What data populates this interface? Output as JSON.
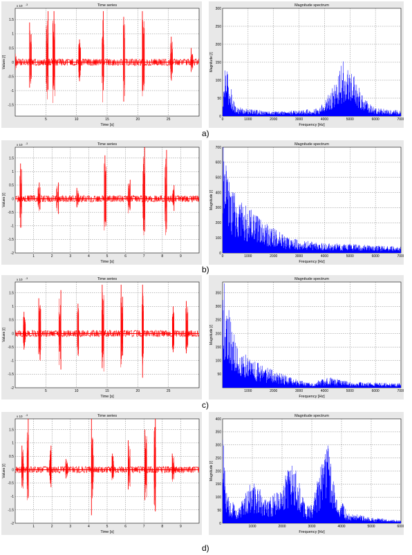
{
  "colors": {
    "time_series": "#ff0000",
    "spectrum": "#0000ff",
    "plot_bg": "#ffffff",
    "frame_bg": "#e8e8e8",
    "grid": "#555555"
  },
  "rows": [
    {
      "label": "a)",
      "time": {
        "title": "Time series",
        "xlabel": "Time [s]",
        "ylabel": "Values [/]",
        "exponent": "x 10",
        "exponent_power": "-3",
        "x_ticks": [
          "5",
          "10",
          "15",
          "20",
          "25"
        ],
        "y_ticks": [
          "1.5",
          "1",
          "0.5",
          "0",
          "-0.5",
          "-1",
          "-1.5"
        ]
      },
      "spectrum": {
        "title": "Magnitude spectrum",
        "xlabel": "Frequency [Hz]",
        "ylabel": "Magnitude [/]",
        "x_ticks": [
          "0",
          "1000",
          "2000",
          "3000",
          "4000",
          "5000",
          "6000",
          "7000"
        ],
        "y_ticks": [
          "300",
          "250",
          "200",
          "150",
          "100",
          "50",
          "0"
        ]
      }
    },
    {
      "label": "b)",
      "time": {
        "title": "Time series",
        "xlabel": "Time [s]",
        "ylabel": "Values [/]",
        "exponent": "x 10",
        "exponent_power": "-3",
        "x_ticks": [
          "1",
          "2",
          "3",
          "4",
          "5",
          "6",
          "7",
          "8",
          "9"
        ],
        "y_ticks": [
          "1.5",
          "1",
          "0.5",
          "0",
          "-0.5",
          "-1",
          "-1.5",
          "-2"
        ]
      },
      "spectrum": {
        "title": "Magnitude spectrum",
        "xlabel": "Frequency [Hz]",
        "ylabel": "Magnitude [/]",
        "x_ticks": [
          "0",
          "1000",
          "2000",
          "3000",
          "4000",
          "5000",
          "6000",
          "7000"
        ],
        "y_ticks": [
          "700",
          "600",
          "500",
          "400",
          "300",
          "200",
          "100",
          "0"
        ]
      }
    },
    {
      "label": "c)",
      "time": {
        "title": "Time series",
        "xlabel": "Time [s]",
        "ylabel": "Values [/]",
        "exponent": "x 10",
        "exponent_power": "-3",
        "x_ticks": [
          "5",
          "10",
          "15",
          "20",
          "25"
        ],
        "y_ticks": [
          "1.5",
          "1",
          "0.5",
          "0",
          "-0.5",
          "-1",
          "-1.5",
          "-2"
        ]
      },
      "spectrum": {
        "title": "Magnitude spectrum",
        "xlabel": "Frequency [Hz]",
        "ylabel": "Magnitude [/]",
        "x_ticks": [
          "1000",
          "2000",
          "3000",
          "4000",
          "5000",
          "6000",
          "7000"
        ],
        "y_ticks": [
          "350",
          "300",
          "250",
          "200",
          "150",
          "100",
          "50"
        ]
      }
    },
    {
      "label": "d)",
      "time": {
        "title": "Time series",
        "xlabel": "Time [s]",
        "ylabel": "Values [/]",
        "exponent": "x 10",
        "exponent_power": "-3",
        "x_ticks": [
          "1",
          "2",
          "3",
          "4",
          "5",
          "6",
          "7",
          "8",
          "9"
        ],
        "y_ticks": [
          "1.5",
          "1",
          "0.5",
          "0",
          "-0.5",
          "-1",
          "-1.5",
          "-2"
        ]
      },
      "spectrum": {
        "title": "Magnitude spectrum",
        "xlabel": "Frequency [Hz]",
        "ylabel": "Magnitude [/]",
        "x_ticks": [
          "1000",
          "2000",
          "3000",
          "4000",
          "5000",
          "6000"
        ],
        "y_ticks": [
          "400",
          "350",
          "300",
          "250",
          "200",
          "150",
          "100",
          "50",
          "0"
        ]
      }
    }
  ],
  "chart_data": [
    {
      "type": "line",
      "title": "Time series",
      "xlabel": "Time [s]",
      "ylabel": "Values [/]",
      "xlim": [
        0,
        30
      ],
      "ylim": [
        -1.9,
        1.9
      ],
      "y_scale_note": "x 10^-3",
      "grid": true,
      "series": [
        {
          "x": [
            0,
            2.5,
            5.2,
            6.3,
            10.5,
            14.3,
            17.8,
            20.9,
            25.5,
            28.8
          ],
          "y": [
            0.3,
            1.4,
            1.8,
            1.8,
            0.8,
            1.8,
            1.6,
            1.8,
            0.9,
            0.5
          ]
        }
      ]
    },
    {
      "type": "area",
      "title": "Magnitude spectrum",
      "xlabel": "Frequency [Hz]",
      "ylabel": "Magnitude [/]",
      "xlim": [
        0,
        7000
      ],
      "ylim": [
        0,
        300
      ],
      "grid": true,
      "series": [
        {
          "x": [
            0,
            100,
            500,
            1000,
            2000,
            3000,
            3800,
            4200,
            4500,
            4700,
            5000,
            5200,
            5500,
            6000,
            7000
          ],
          "y": [
            20,
            140,
            25,
            18,
            12,
            15,
            20,
            60,
            90,
            145,
            110,
            100,
            50,
            20,
            15
          ]
        }
      ]
    },
    {
      "type": "line",
      "title": "Time series",
      "xlabel": "Time [s]",
      "ylabel": "Values [/]",
      "xlim": [
        0,
        10
      ],
      "ylim": [
        -2,
        1.9
      ],
      "y_scale_note": "x 10^-3",
      "grid": true,
      "series": [
        {
          "x": [
            0.3,
            1.3,
            2.3,
            3.4,
            4.9,
            6.2,
            7.0,
            8.2,
            8.6
          ],
          "y": [
            1.3,
            0.6,
            0.6,
            0.4,
            1.6,
            0.7,
            1.9,
            1.8,
            0.5
          ]
        }
      ]
    },
    {
      "type": "area",
      "title": "Magnitude spectrum",
      "xlabel": "Frequency [Hz]",
      "ylabel": "Magnitude [/]",
      "xlim": [
        0,
        7000
      ],
      "ylim": [
        0,
        700
      ],
      "grid": true,
      "series": [
        {
          "x": [
            0,
            100,
            300,
            500,
            1000,
            1500,
            2000,
            2500,
            3000,
            3500,
            4000,
            5000,
            6000,
            7000
          ],
          "y": [
            700,
            550,
            450,
            350,
            280,
            200,
            150,
            100,
            80,
            70,
            60,
            55,
            45,
            40
          ]
        }
      ]
    },
    {
      "type": "line",
      "title": "Time series",
      "xlabel": "Time [s]",
      "ylabel": "Values [/]",
      "xlim": [
        0,
        30
      ],
      "ylim": [
        -2,
        1.9
      ],
      "y_scale_note": "x 10^-3",
      "grid": true,
      "series": [
        {
          "x": [
            1.5,
            4.0,
            7.3,
            10.2,
            14.3,
            17.4,
            20.8,
            25.8,
            28.0
          ],
          "y": [
            0.8,
            1.3,
            1.6,
            1.1,
            1.8,
            1.8,
            1.8,
            1.0,
            1.2
          ]
        }
      ]
    },
    {
      "type": "area",
      "title": "Magnitude spectrum",
      "xlabel": "Frequency [Hz]",
      "ylabel": "Magnitude [/]",
      "xlim": [
        0,
        7000
      ],
      "ylim": [
        0,
        390
      ],
      "grid": true,
      "series": [
        {
          "x": [
            0,
            100,
            300,
            600,
            1000,
            1500,
            2000,
            2500,
            3000,
            3500,
            4200,
            5000,
            6000,
            7000
          ],
          "y": [
            390,
            330,
            250,
            150,
            110,
            80,
            60,
            40,
            25,
            20,
            35,
            20,
            18,
            15
          ]
        }
      ]
    },
    {
      "type": "line",
      "title": "Time series",
      "xlabel": "Time [s]",
      "ylabel": "Values [/]",
      "xlim": [
        0,
        10
      ],
      "ylim": [
        -2,
        1.9
      ],
      "y_scale_note": "x 10^-3",
      "grid": true,
      "series": [
        {
          "x": [
            0.4,
            0.7,
            1.9,
            2.8,
            4.2,
            5.3,
            6.2,
            7.1,
            7.6,
            8.6
          ],
          "y": [
            0.9,
            1.9,
            0.9,
            0.4,
            1.9,
            0.6,
            1.1,
            1.5,
            1.9,
            0.6
          ]
        }
      ]
    },
    {
      "type": "area",
      "title": "Magnitude spectrum",
      "xlabel": "Frequency [Hz]",
      "ylabel": "Magnitude [/]",
      "xlim": [
        0,
        6000
      ],
      "ylim": [
        0,
        400
      ],
      "grid": true,
      "series": [
        {
          "x": [
            0,
            100,
            500,
            1000,
            1500,
            2000,
            2300,
            2500,
            2800,
            3000,
            3300,
            3600,
            3800,
            4200,
            5000,
            6000
          ],
          "y": [
            400,
            120,
            50,
            150,
            90,
            120,
            250,
            180,
            60,
            70,
            200,
            300,
            120,
            40,
            20,
            10
          ]
        }
      ]
    }
  ]
}
